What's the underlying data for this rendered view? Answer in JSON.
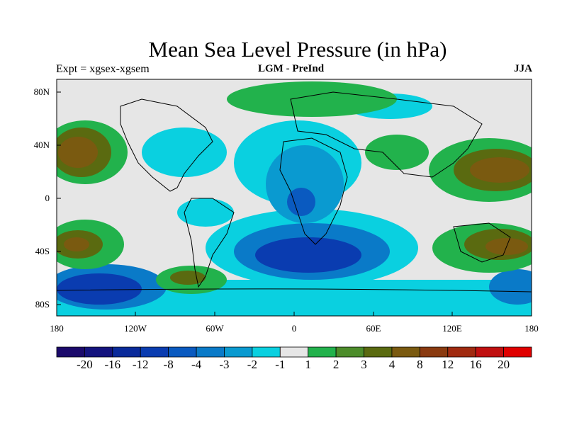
{
  "title": "Mean Sea Level Pressure (in hPa)",
  "subtitle_left": "Expt = xgsex-xgsem",
  "subtitle_center": "LGM - PreInd",
  "subtitle_right": "JJA",
  "lat_labels": [
    "80N",
    "40N",
    "0",
    "40S",
    "80S"
  ],
  "lon_labels": [
    "180",
    "120W",
    "60W",
    "0",
    "60E",
    "120E",
    "180"
  ],
  "colorbar": {
    "colors": [
      "#1b0a6b",
      "#14137e",
      "#0a2a9a",
      "#0a3cb0",
      "#0a5ac0",
      "#0a7ac8",
      "#0a9ad0",
      "#0ad0e0",
      "#e6e6e6",
      "#22b24c",
      "#4c8c2a",
      "#5a6a10",
      "#7a5a10",
      "#8a3a10",
      "#a02a10",
      "#c01010",
      "#e00000"
    ],
    "labels": [
      "-20",
      "-16",
      "-12",
      "-8",
      "-4",
      "-3",
      "-2",
      "-1",
      "1",
      "2",
      "3",
      "4",
      "8",
      "12",
      "16",
      "20"
    ]
  }
}
